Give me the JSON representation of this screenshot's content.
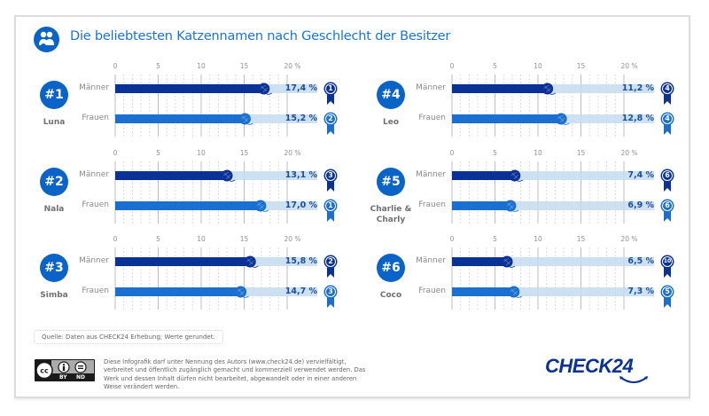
{
  "title": "Die beliebtesten Katzennamen nach Geschlecht der Besitzer",
  "title_icon": "people-icon",
  "colors": {
    "brand": "#0a64c8",
    "maenner_bar": "#0a3296",
    "frauen_bar": "#1a6fd0",
    "track": "#c6dcf0",
    "value_text": "#1a4fa0"
  },
  "chart_data": {
    "type": "bar",
    "orientation": "horizontal",
    "title": "Die beliebtesten Katzennamen nach Geschlecht der Besitzer",
    "xlim": [
      0,
      20
    ],
    "x_ticks": [
      "0",
      "5",
      "10",
      "15",
      "20 %"
    ],
    "grid": true,
    "series_names": [
      "Männer",
      "Frauen"
    ],
    "panels": [
      {
        "rank": "#1",
        "name": "Luna",
        "bars": [
          {
            "group": "Männer",
            "value": 17.4,
            "label": "17,4 %",
            "gender_rank": "1"
          },
          {
            "group": "Frauen",
            "value": 15.2,
            "label": "15,2 %",
            "gender_rank": "2"
          }
        ]
      },
      {
        "rank": "#2",
        "name": "Nala",
        "bars": [
          {
            "group": "Männer",
            "value": 13.1,
            "label": "13,1 %",
            "gender_rank": "3"
          },
          {
            "group": "Frauen",
            "value": 17.0,
            "label": "17,0 %",
            "gender_rank": "1"
          }
        ]
      },
      {
        "rank": "#3",
        "name": "Simba",
        "bars": [
          {
            "group": "Männer",
            "value": 15.8,
            "label": "15,8 %",
            "gender_rank": "2"
          },
          {
            "group": "Frauen",
            "value": 14.7,
            "label": "14,7 %",
            "gender_rank": "3"
          }
        ]
      },
      {
        "rank": "#4",
        "name": "Leo",
        "bars": [
          {
            "group": "Männer",
            "value": 11.2,
            "label": "11,2 %",
            "gender_rank": "4"
          },
          {
            "group": "Frauen",
            "value": 12.8,
            "label": "12,8 %",
            "gender_rank": "4"
          }
        ]
      },
      {
        "rank": "#5",
        "name": "Charlie & Charly",
        "bars": [
          {
            "group": "Männer",
            "value": 7.4,
            "label": "7,4 %",
            "gender_rank": "6"
          },
          {
            "group": "Frauen",
            "value": 6.9,
            "label": "6,9 %",
            "gender_rank": "6"
          }
        ]
      },
      {
        "rank": "#6",
        "name": "Coco",
        "bars": [
          {
            "group": "Männer",
            "value": 6.5,
            "label": "6,5 %",
            "gender_rank": "10"
          },
          {
            "group": "Frauen",
            "value": 7.3,
            "label": "7,3 %",
            "gender_rank": "5"
          }
        ]
      }
    ]
  },
  "footer": {
    "source": "Quelle: Daten aus CHECK24 Erhebung; Werte gerundet.",
    "license_icon": "cc-by-nd-icon",
    "license_badge": {
      "by": "BY",
      "nd": "ND"
    },
    "license_text": "Diese Infografik darf unter Nennung des Autors (www.check24.de) vervielfältigt, verbreitet und öffentlich zugänglich gemacht und kommerziell verwendet werden. Das Werk und dessen Inhalt dürfen nicht bearbeitet, abgewandelt oder in einer anderen Weise verändert werden.",
    "logo": "CHECK24"
  }
}
